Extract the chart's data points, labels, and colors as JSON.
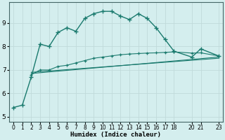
{
  "xlabel": "Humidex (Indice chaleur)",
  "background_color": "#d4eeee",
  "line_color": "#1a7a6e",
  "grid_color": "#c0dada",
  "xlim": [
    -0.5,
    23.5
  ],
  "ylim": [
    4.8,
    9.9
  ],
  "yticks": [
    5,
    6,
    7,
    8,
    9
  ],
  "xtick_vals": [
    0,
    1,
    2,
    3,
    4,
    5,
    6,
    7,
    8,
    9,
    10,
    11,
    12,
    13,
    14,
    15,
    16,
    17,
    18,
    20,
    21,
    23
  ],
  "xtick_labels": [
    "0",
    "1",
    "2",
    "3",
    "4",
    "5",
    "6",
    "7",
    "8",
    "9",
    "10",
    "11",
    "12",
    "13",
    "14",
    "15",
    "16",
    "17",
    "18",
    "20",
    "21",
    "23"
  ],
  "line1_x": [
    0,
    1,
    2,
    3,
    4,
    5,
    6,
    7,
    8,
    9,
    10,
    11,
    12,
    13,
    14,
    15,
    16,
    17,
    18,
    20,
    21,
    23
  ],
  "line1_y": [
    5.4,
    5.5,
    6.7,
    8.1,
    8.0,
    8.6,
    8.8,
    8.65,
    9.2,
    9.4,
    9.5,
    9.5,
    9.3,
    9.15,
    9.4,
    9.2,
    8.8,
    8.3,
    7.8,
    7.55,
    7.9,
    7.6
  ],
  "line2_x": [
    2,
    3,
    4,
    5,
    6,
    7,
    8,
    9,
    10,
    11,
    12,
    13,
    14,
    15,
    16,
    17,
    18,
    20,
    21,
    23
  ],
  "line2_y": [
    6.8,
    7.0,
    7.0,
    7.15,
    7.2,
    7.3,
    7.4,
    7.5,
    7.55,
    7.6,
    7.65,
    7.68,
    7.7,
    7.72,
    7.73,
    7.75,
    7.77,
    7.72,
    7.73,
    7.6
  ],
  "line3_x": [
    2,
    23
  ],
  "line3_y": [
    6.85,
    7.55
  ],
  "line4_x": [
    2,
    23
  ],
  "line4_y": [
    6.9,
    7.5
  ]
}
